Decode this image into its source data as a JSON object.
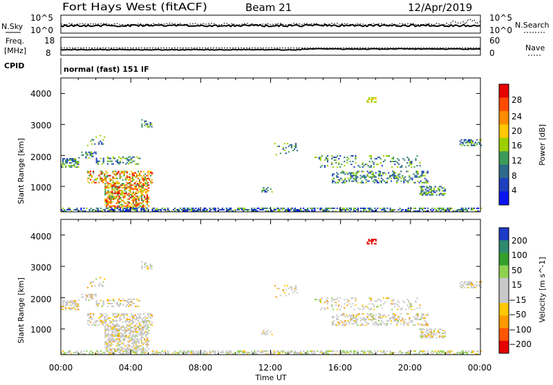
{
  "header": {
    "station": "Fort Hays West (fitACF)",
    "beam": "Beam 21",
    "date": "12/Apr/2019"
  },
  "panels_top": {
    "nsky_label": "N.Sky",
    "nsearch_label": "N.Search",
    "nsky_ticks": [
      "10^5",
      "10^0"
    ],
    "nsearch_ticks": [
      "10^5",
      "10^0"
    ],
    "freq_label_1": "Freq.",
    "freq_label_2": "[MHz]",
    "freq_ticks": [
      "18",
      "8"
    ],
    "nave_label": "Nave",
    "nave_ticks": [
      "60",
      "0"
    ],
    "cpid_label": "CPID",
    "cpid_text": "normal (fast) 151 IF"
  },
  "chart_data": [
    {
      "type": "heatmap",
      "name": "power",
      "ylabel": "Slant Range [km]",
      "yticks": [
        "4000",
        "3000",
        "2000",
        "1000"
      ],
      "ylim": [
        180,
        4500
      ],
      "xlim": [
        0,
        24
      ],
      "colorbar_label": "Power [dB]",
      "colorbar_ticks": [
        "28",
        "24",
        "20",
        "16",
        "12",
        "8",
        "4"
      ],
      "colorbar_colors": [
        "#e60000",
        "#ff4a00",
        "#ff8c00",
        "#ffc800",
        "#9bd000",
        "#3c9a57",
        "#2d6a8a",
        "#1e3fbe",
        "#0a14f0"
      ]
    },
    {
      "type": "heatmap",
      "name": "velocity",
      "ylabel": "Slant Range [km]",
      "yticks": [
        "4000",
        "3000",
        "2000",
        "1000"
      ],
      "ylim": [
        180,
        4500
      ],
      "xlim": [
        0,
        24
      ],
      "colorbar_label": "Velocity [m s^-1]",
      "colorbar_ticks": [
        "200",
        "100",
        "50",
        "15",
        "−15",
        "−50",
        "−100",
        "−200"
      ],
      "colorbar_colors": [
        "#1e3cc8",
        "#2d8a6e",
        "#33a02c",
        "#8fd14f",
        "#c8c8c8",
        "#c8c8c8",
        "#ffc800",
        "#ff9900",
        "#ff5500",
        "#e60000"
      ]
    }
  ],
  "xaxis": {
    "ticks": [
      "00:00",
      "04:00",
      "08:00",
      "12:00",
      "16:00",
      "20:00",
      "00:00"
    ],
    "label": "Time UT"
  }
}
